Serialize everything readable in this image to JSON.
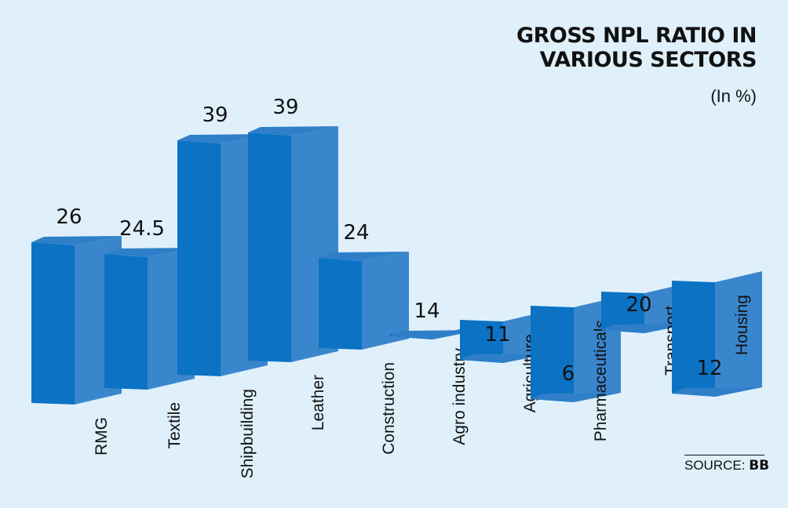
{
  "chart_data": {
    "type": "bar",
    "title_lines": [
      "GROSS NPL RATIO IN",
      "VARIOUS SECTORS"
    ],
    "subtitle": "(In %)",
    "categories": [
      "RMG",
      "Textile",
      "Shipbuilding",
      "Leather",
      "Construction",
      "Agro industry",
      "Agriculture",
      "Pharmaceuticals",
      "Transport",
      "Housing"
    ],
    "values": [
      26,
      24.5,
      39,
      39,
      24,
      14,
      11,
      6,
      20,
      12
    ],
    "value_labels": [
      "26",
      "24.5",
      "39",
      "39",
      "24",
      "14",
      "11",
      "6",
      "20",
      "12"
    ],
    "source_label": "SOURCE:",
    "source_name": "BB",
    "xlabel": "",
    "ylabel": "",
    "colors": {
      "front": "#0b72c4",
      "side": "#3a86cc",
      "top": "#2f7fc8",
      "edge": "#1a64ae"
    }
  }
}
